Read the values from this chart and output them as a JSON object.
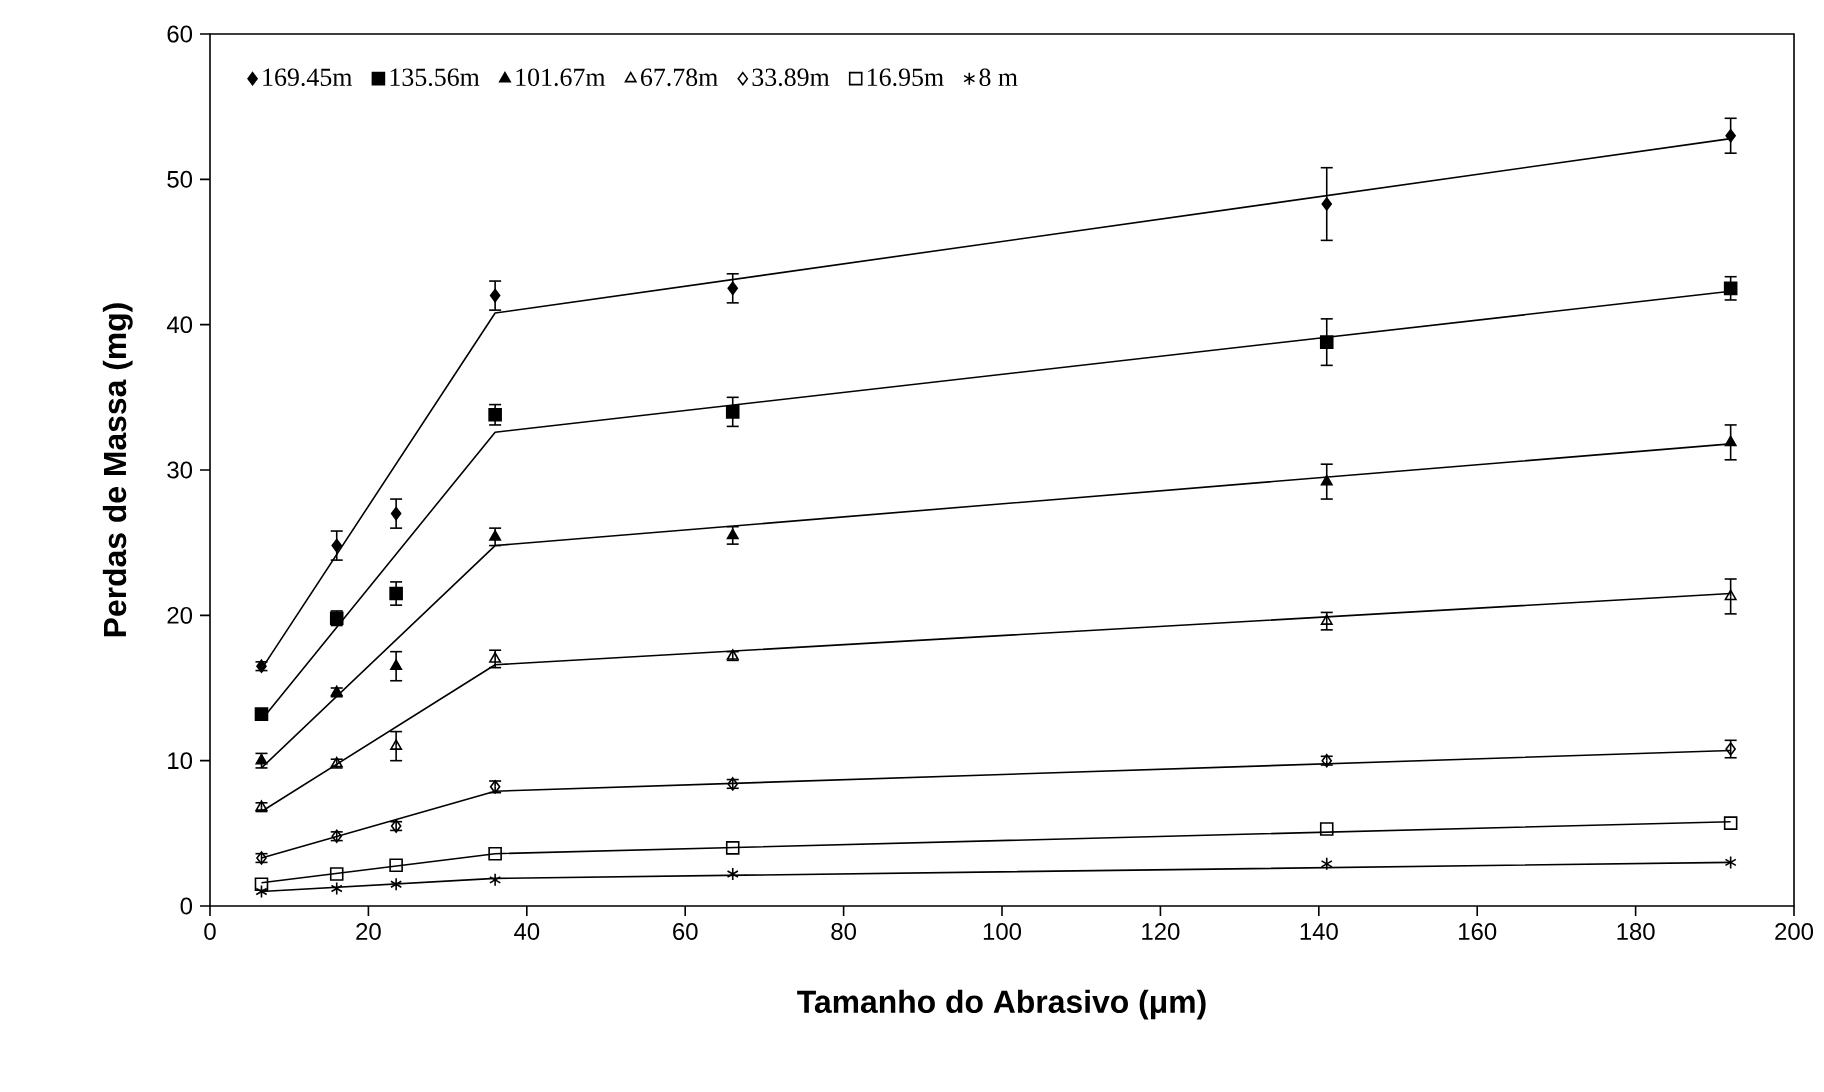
{
  "chart_data": {
    "type": "scatter",
    "xlabel": "Tamanho do Abrasivo (μm)",
    "ylabel": "Perdas de Massa (mg)",
    "xlim": [
      0,
      200
    ],
    "ylim": [
      0,
      60
    ],
    "xticks": [
      0,
      20,
      40,
      60,
      80,
      100,
      120,
      140,
      160,
      180,
      200
    ],
    "yticks": [
      0,
      10,
      20,
      30,
      40,
      50,
      60
    ],
    "grid": false,
    "legend": "top left",
    "x": [
      6.5,
      16,
      23.5,
      36,
      66,
      141,
      192
    ],
    "series": [
      {
        "name": "169.45m",
        "color": "#000000",
        "marker": "diamond",
        "values": [
          16.5,
          24.8,
          27,
          42,
          42.5,
          48.3,
          53
        ],
        "errors": [
          0.3,
          1.0,
          1.0,
          1.0,
          1.0,
          2.5,
          1.2
        ]
      },
      {
        "name": "135.56m",
        "color": "#000000",
        "marker": "square",
        "values": [
          13.2,
          19.8,
          21.5,
          33.8,
          34,
          38.8,
          42.5
        ],
        "errors": [
          0.3,
          0.5,
          0.8,
          0.7,
          1.0,
          1.6,
          0.8
        ]
      },
      {
        "name": "101.67m",
        "color": "#000000",
        "marker": "triangle",
        "values": [
          10,
          14.7,
          16.5,
          25.4,
          25.5,
          29.2,
          31.9
        ],
        "errors": [
          0.5,
          0.3,
          1.0,
          0.6,
          0.6,
          1.2,
          1.2
        ]
      },
      {
        "name": "67.78m",
        "color": "#000000",
        "marker": "triangle-open",
        "values": [
          6.8,
          9.8,
          11,
          17,
          17.2,
          19.6,
          21.3
        ],
        "errors": [
          0.3,
          0.3,
          1.0,
          0.6,
          0.3,
          0.6,
          1.2
        ]
      },
      {
        "name": "33.89m",
        "color": "#000000",
        "marker": "diamond-open",
        "values": [
          3.3,
          4.8,
          5.5,
          8.2,
          8.4,
          10,
          10.8
        ],
        "errors": [
          0.3,
          0.3,
          0.3,
          0.4,
          0.3,
          0.3,
          0.6
        ]
      },
      {
        "name": "16.95m",
        "color": "#000000",
        "marker": "square-open",
        "values": [
          1.5,
          2.2,
          2.8,
          3.6,
          4,
          5.3,
          5.7
        ]
      },
      {
        "name": "8 m",
        "color": "#000000",
        "marker": "cross",
        "values": [
          1,
          1.2,
          1.5,
          1.8,
          2.2,
          2.9,
          3.0
        ]
      },
      {
        "type": "line",
        "color": "#000000",
        "x": [
          6.5,
          36,
          192
        ],
        "values": [
          16.3,
          40.8,
          52.8
        ]
      },
      {
        "type": "line",
        "color": "#000000",
        "x": [
          6.5,
          36,
          192
        ],
        "values": [
          12.8,
          32.6,
          42.3
        ]
      },
      {
        "type": "line",
        "color": "#000000",
        "x": [
          6.5,
          36,
          192
        ],
        "values": [
          9.5,
          24.8,
          31.8
        ]
      },
      {
        "type": "line",
        "color": "#000000",
        "x": [
          6.5,
          36,
          192
        ],
        "values": [
          6.5,
          16.6,
          21.5
        ]
      },
      {
        "type": "line",
        "color": "#000000",
        "x": [
          6.5,
          36,
          192
        ],
        "values": [
          3.3,
          7.9,
          10.7
        ]
      },
      {
        "type": "line",
        "color": "#000000",
        "x": [
          6.5,
          36,
          192
        ],
        "values": [
          1.6,
          3.6,
          5.8
        ]
      },
      {
        "type": "line",
        "color": "#000000",
        "x": [
          6.5,
          36,
          192
        ],
        "values": [
          1.0,
          1.9,
          3.0
        ]
      }
    ]
  }
}
